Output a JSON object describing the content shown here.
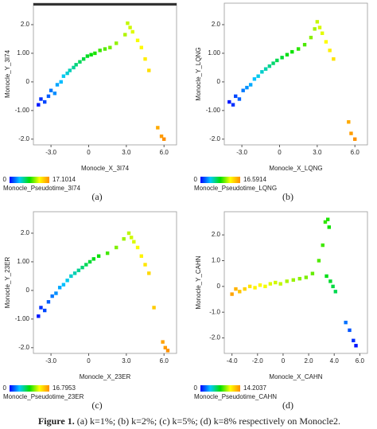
{
  "chart_data": [
    {
      "type": "scatter",
      "x_label": "Monocle_X_3I74",
      "y_label": "Monocle_Y_3I74",
      "colorbar_label": "Monocle_Pseudotime_3I74",
      "caption": "(a)",
      "xlim": [
        -4.4,
        7.0
      ],
      "ylim": [
        -2.2,
        2.75
      ],
      "xticks": [
        {
          "value": -3,
          "label": "-3.0"
        },
        0,
        {
          "value": 3,
          "label": "3.0"
        },
        {
          "value": 6,
          "label": "6.0"
        }
      ],
      "yticks": [
        {
          "value": 2,
          "label": "2.0"
        },
        {
          "value": 1,
          "label": "1.00"
        },
        0,
        {
          "value": -1,
          "label": "-1.00"
        },
        {
          "value": -2,
          "label": "-2.0"
        }
      ],
      "clim": [
        0,
        17.1014
      ],
      "cticks": [
        0,
        17.1014
      ],
      "colormap": [
        "#0000ff",
        "#00c8ff",
        "#00e000",
        "#ffff00",
        "#ff8c00"
      ],
      "x": [
        -4.0,
        -3.8,
        -3.5,
        -3.2,
        -3.0,
        -2.7,
        -2.5,
        -2.2,
        -2.0,
        -1.7,
        -1.5,
        -1.2,
        -1.0,
        -0.7,
        -0.4,
        -0.1,
        0.2,
        0.5,
        0.9,
        1.3,
        1.7,
        2.2,
        2.9,
        3.1,
        3.3,
        3.5,
        3.9,
        4.2,
        4.5,
        4.8,
        5.5,
        5.8,
        6.0
      ],
      "y": [
        -0.8,
        -0.6,
        -0.7,
        -0.5,
        -0.3,
        -0.4,
        -0.1,
        0.0,
        0.2,
        0.3,
        0.4,
        0.5,
        0.6,
        0.7,
        0.8,
        0.9,
        0.95,
        1.0,
        1.1,
        1.15,
        1.2,
        1.35,
        1.65,
        2.05,
        1.9,
        1.75,
        1.45,
        1.2,
        0.8,
        0.4,
        -1.6,
        -1.9,
        -2.0
      ],
      "c": [
        0.5,
        1,
        1.5,
        2,
        2.5,
        3,
        3.5,
        4,
        4.5,
        5,
        5.5,
        6,
        6.5,
        7,
        7.5,
        8,
        8.5,
        9,
        9.5,
        10,
        10.5,
        11,
        11.5,
        11.8,
        12,
        12.3,
        12.7,
        13,
        13.5,
        14,
        16,
        16.5,
        17
      ]
    },
    {
      "type": "scatter",
      "x_label": "Monocle_X_LQNG",
      "y_label": "Monocle_Y_LQNG",
      "colorbar_label": "Monocle_Pseudotime_LQNG",
      "caption": "(b)",
      "xlim": [
        -4.4,
        7.0
      ],
      "ylim": [
        -2.2,
        2.75
      ],
      "xticks": [
        {
          "value": -3,
          "label": "-3.0"
        },
        0,
        {
          "value": 3,
          "label": "3.0"
        },
        {
          "value": 6,
          "label": "6.0"
        }
      ],
      "yticks": [
        {
          "value": 2,
          "label": "2.0"
        },
        {
          "value": 1,
          "label": "1.00"
        },
        0,
        {
          "value": -1,
          "label": "-1.00"
        },
        {
          "value": -2,
          "label": "-2.0"
        }
      ],
      "clim": [
        0,
        16.5914
      ],
      "cticks": [
        0,
        16.5914
      ],
      "colormap": [
        "#0000ff",
        "#00c8ff",
        "#00e000",
        "#ffff00",
        "#ff8c00"
      ],
      "x": [
        -4.0,
        -3.7,
        -3.5,
        -3.2,
        -2.9,
        -2.6,
        -2.3,
        -2.0,
        -1.7,
        -1.4,
        -1.1,
        -0.8,
        -0.5,
        -0.2,
        0.2,
        0.6,
        1.0,
        1.5,
        2.0,
        2.5,
        2.8,
        3.0,
        3.2,
        3.4,
        3.7,
        4.0,
        4.3,
        5.5,
        5.7,
        6.0
      ],
      "y": [
        -0.7,
        -0.8,
        -0.5,
        -0.6,
        -0.3,
        -0.2,
        -0.1,
        0.1,
        0.2,
        0.35,
        0.45,
        0.55,
        0.65,
        0.75,
        0.85,
        0.95,
        1.05,
        1.15,
        1.3,
        1.55,
        1.85,
        2.1,
        1.9,
        1.7,
        1.4,
        1.1,
        0.8,
        -1.4,
        -1.8,
        -2.0
      ],
      "c": [
        0.5,
        1,
        1.5,
        2,
        2.5,
        3,
        3.5,
        4,
        4.5,
        5,
        5.5,
        6,
        6.5,
        7,
        7.5,
        8,
        8.5,
        9,
        9.5,
        10.5,
        11,
        11.5,
        11.8,
        12,
        12.5,
        13,
        13.5,
        15.5,
        16,
        16.4
      ]
    },
    {
      "type": "scatter",
      "x_label": "Monocle_X_23ER",
      "y_label": "Monocle_Y_23ER",
      "colorbar_label": "Monocle_Pseudotime_23ER",
      "caption": "(c)",
      "xlim": [
        -4.4,
        7.0
      ],
      "ylim": [
        -2.2,
        2.75
      ],
      "xticks": [
        {
          "value": -3,
          "label": "-3.0"
        },
        0,
        {
          "value": 3,
          "label": "3.0"
        },
        {
          "value": 6,
          "label": "6.0"
        }
      ],
      "yticks": [
        {
          "value": 2,
          "label": "2.0"
        },
        {
          "value": 1,
          "label": "1.00"
        },
        0,
        {
          "value": -1,
          "label": "-1.00"
        },
        {
          "value": -2,
          "label": "-2.0"
        }
      ],
      "clim": [
        0,
        16.7953
      ],
      "cticks": [
        0,
        16.7953
      ],
      "colormap": [
        "#0000ff",
        "#00c8ff",
        "#00e000",
        "#ffff00",
        "#ff8c00"
      ],
      "x": [
        -4.0,
        -3.8,
        -3.5,
        -3.2,
        -2.9,
        -2.6,
        -2.3,
        -2.0,
        -1.7,
        -1.4,
        -1.1,
        -0.8,
        -0.5,
        -0.2,
        0.1,
        0.4,
        0.8,
        1.5,
        2.2,
        2.8,
        3.2,
        3.4,
        3.6,
        3.9,
        4.2,
        4.5,
        4.8,
        5.2,
        5.9,
        6.1,
        6.3
      ],
      "y": [
        -0.9,
        -0.6,
        -0.7,
        -0.4,
        -0.2,
        -0.1,
        0.1,
        0.2,
        0.35,
        0.5,
        0.6,
        0.7,
        0.8,
        0.9,
        1.0,
        1.1,
        1.2,
        1.3,
        1.5,
        1.8,
        2.0,
        1.85,
        1.7,
        1.5,
        1.2,
        0.9,
        0.6,
        -0.6,
        -1.8,
        -2.0,
        -2.1
      ],
      "c": [
        0.5,
        1,
        1.5,
        2,
        2.5,
        3,
        3.5,
        4,
        4.5,
        5,
        5.5,
        6,
        6.5,
        7,
        7.5,
        8,
        8.5,
        9.5,
        10.5,
        11,
        11.5,
        11.8,
        12,
        12.5,
        13,
        13.5,
        14,
        14.5,
        16,
        16.3,
        16.6
      ]
    },
    {
      "type": "scatter",
      "x_label": "Monocle_X_CAHN",
      "y_label": "Monocle_Y_CAHN",
      "colorbar_label": "Monocle_Pseudotime_CAHN",
      "caption": "(d)",
      "xlim": [
        -4.6,
        6.6
      ],
      "ylim": [
        -2.6,
        2.9
      ],
      "xticks": [
        {
          "value": -4,
          "label": "-4.0"
        },
        {
          "value": -2,
          "label": "-2.0"
        },
        0,
        {
          "value": 2,
          "label": "2.0"
        },
        {
          "value": 4,
          "label": "4.0"
        },
        {
          "value": 6,
          "label": "6.0"
        }
      ],
      "yticks": [
        {
          "value": 2,
          "label": "2.0"
        },
        {
          "value": 1,
          "label": "1.0"
        },
        0,
        {
          "value": -1,
          "label": "-1.0"
        },
        {
          "value": -2,
          "label": "-2.0"
        }
      ],
      "clim": [
        0,
        14.2037
      ],
      "cticks": [
        0,
        14.2037
      ],
      "colormap": [
        "#0000ff",
        "#00c8ff",
        "#00e000",
        "#ffff00",
        "#ff8c00"
      ],
      "x": [
        -4.0,
        -3.7,
        -3.4,
        -3.0,
        -2.6,
        -2.2,
        -1.8,
        -1.4,
        -1.0,
        -0.6,
        -0.2,
        0.3,
        0.8,
        1.3,
        1.8,
        2.3,
        2.8,
        3.1,
        3.3,
        3.5,
        3.6,
        3.4,
        3.7,
        3.9,
        4.1,
        4.9,
        5.2,
        5.5,
        5.7
      ],
      "y": [
        -0.3,
        -0.1,
        -0.2,
        -0.1,
        0.0,
        -0.05,
        0.05,
        0.0,
        0.1,
        0.15,
        0.1,
        0.2,
        0.25,
        0.3,
        0.35,
        0.5,
        1.0,
        1.6,
        2.5,
        2.6,
        2.3,
        0.4,
        0.2,
        0.0,
        -0.2,
        -1.4,
        -1.7,
        -2.1,
        -2.3
      ],
      "c": [
        13.5,
        13,
        12.5,
        12,
        11.5,
        11,
        10.8,
        10.5,
        10.2,
        10,
        9.8,
        9.5,
        9.2,
        9,
        8.8,
        8.5,
        8.2,
        8,
        7.8,
        7.5,
        7.3,
        6.8,
        6.5,
        6.2,
        6,
        2,
        1.5,
        0.8,
        0.3
      ]
    }
  ],
  "caption_label": "Figure 1.",
  "caption": "(a) k=1%; (b) k=2%; (c) k=5%; (d) k=8% respectively on Monocle2."
}
